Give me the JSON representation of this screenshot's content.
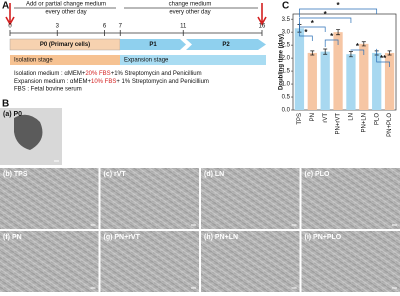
{
  "panel_a": {
    "label": "A",
    "phase1_note": [
      "Add or partial change medium",
      "every other day"
    ],
    "phase2_note": [
      "change medium",
      "every other day"
    ],
    "days": [
      0,
      3,
      6,
      7,
      11,
      16
    ],
    "p0": "P0 (Primary cells)",
    "p1": "P1",
    "p2": "P2",
    "isolation_stage": "Isolation stage",
    "expansion_stage": "Expansion stage",
    "isolation_medium": [
      "Isolation medium : αMEM+",
      "20% FBS",
      "+1% Streptomycin and Penicillium"
    ],
    "expansion_medium": [
      "Expansion medium : αMEM+",
      "10% FBS",
      "+ 1% Streptomycin and Penicillium"
    ],
    "fbs_note": "FBS : Fetal bovine serum"
  },
  "panel_b": {
    "label": "B",
    "images": [
      "(a) P0",
      "(b) TPS",
      "(c) rVT",
      "(d) LN",
      "(e) PLO",
      "(f) PN",
      "(g) PN+rVT",
      "(h) PN+LN",
      "(i) PN+PLO"
    ]
  },
  "chart_data": {
    "type": "bar",
    "panel_label": "C",
    "y_label": "Doubling time (day)",
    "categories": [
      "TPS",
      "PN",
      "rVT",
      "PN+rVT",
      "LN",
      "PN+LN",
      "PLO",
      "PN+PLO"
    ],
    "values": [
      3.15,
      2.2,
      2.25,
      3.0,
      2.15,
      2.55,
      2.2,
      2.2
    ],
    "errors": [
      0.15,
      0.08,
      0.1,
      0.1,
      0.1,
      0.08,
      0.08,
      0.08
    ],
    "colors": [
      "#a8d8f0",
      "#f6c6a4",
      "#a8d8f0",
      "#f6c6a4",
      "#a8d8f0",
      "#f6c6a4",
      "#a8d8f0",
      "#f6c6a4"
    ],
    "ylim": [
      0,
      3.7
    ],
    "yticks": [
      {
        "value": 0,
        "label": "0.0"
      },
      0.5,
      {
        "value": 1,
        "label": "1.0"
      },
      1.5,
      {
        "value": 2,
        "label": "2.0"
      },
      2.5,
      {
        "value": 3,
        "label": "3.0"
      },
      3.5
    ],
    "significance_labels": [
      "*",
      "*",
      "*",
      "*",
      "*",
      "*",
      "**"
    ]
  }
}
